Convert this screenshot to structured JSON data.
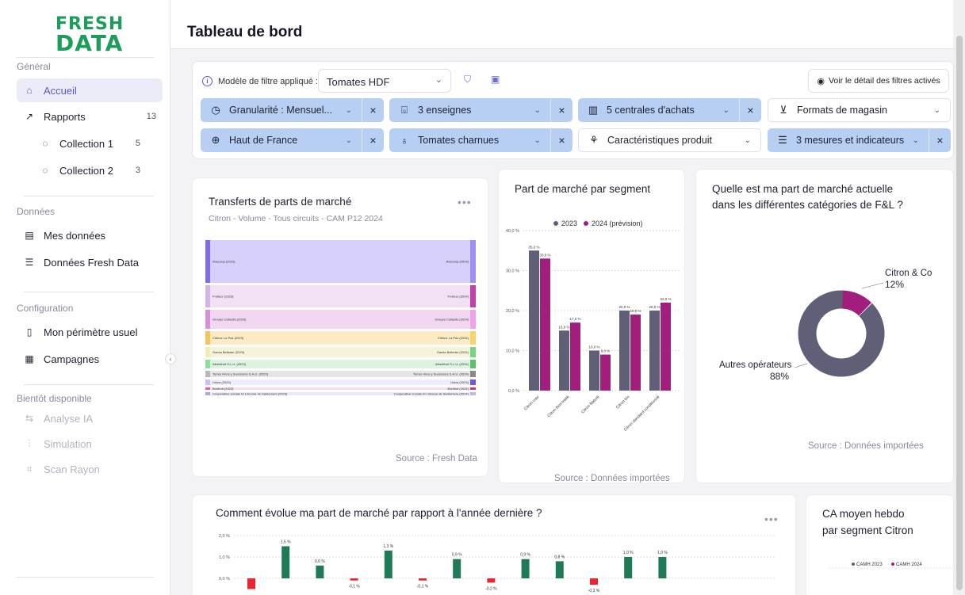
{
  "logo": {
    "line1": "FRESH",
    "line2": "DATA"
  },
  "sidebar": {
    "sections": [
      {
        "title": "Général"
      },
      {
        "title": "Données"
      },
      {
        "title": "Configuration"
      },
      {
        "title": "Bientôt disponible"
      }
    ],
    "items": {
      "accueil": "Accueil",
      "rapports": "Rapports",
      "rapports_count": "13",
      "collection1": "Collection 1",
      "collection1_count": "5",
      "collection2": "Collection 2",
      "collection2_count": "3",
      "mes_donnees": "Mes données",
      "donnees_fd": "Données Fresh Data",
      "perimetre": "Mon périmètre usuel",
      "campagnes": "Campagnes",
      "analyse": "Analyse IA",
      "simulation": "Simulation",
      "scan": "Scan Rayon"
    }
  },
  "header": {
    "title": "Tableau de bord"
  },
  "filters": {
    "label": "Modèle de filtre appliqué :",
    "model": "Tomates HDF",
    "detail": "Voir le détail des filtres activés",
    "chips": [
      {
        "label": "Granularité : Mensuel...",
        "icon": "clock-icon"
      },
      {
        "label": "3 enseignes",
        "icon": "basket-icon"
      },
      {
        "label": "5 centrales d'achats",
        "icon": "building-icon"
      },
      {
        "label": "Formats de magasin",
        "icon": "cart-icon"
      },
      {
        "label": "Haut de France",
        "icon": "globe-icon"
      },
      {
        "label": "Tomates charnues",
        "icon": "tomato-icon"
      },
      {
        "label": "Caractéristiques produit",
        "icon": "sprout-icon"
      },
      {
        "label": "3 mesures et indicateurs",
        "icon": "database-icon"
      }
    ]
  },
  "cards": {
    "transferts": {
      "title": "Transferts de parts de marché",
      "subtitle": "Citron - Volume - Tous circuits - CAM P12 2024",
      "source": "Source : Fresh Data",
      "left_nodes": [
        "Anecoop (2023)",
        "Fruiteur (2023)",
        "Groupe Cellacitu (2023)",
        "Citrinor La Paz (2023)",
        "Garcia Belleder (2023)",
        "Albertfruit S.L.U. (2023)",
        "Torres Hnos y Sucesores S.A.U. (2023)",
        "Unica (2023)",
        "Bonfruit (2023)",
        "Cooperative sociale El Limonar de Santomera (2023)"
      ],
      "right_nodes": [
        "Anecoop (2024)",
        "Fruiteur (2024)",
        "Groupe Cellacitu (2024)",
        "Citrinor La Paz (2024)",
        "Garcia Belleder (2024)",
        "Albertfruit S.L.U. (2024)",
        "Torres Hnos y Sucesores S.A.U. (2024)",
        "Unica (2024)",
        "Bonfruit (2024)",
        "Cooperative sociale El Limonar de Santomera (2024)"
      ]
    },
    "segment": {
      "title": "Part de marché par segment",
      "source": "Source :  Données importées"
    },
    "donut": {
      "title_line1": "Quelle est ma part de marché actuelle",
      "title_line2": "dans les différentes catégories de F&L ?",
      "source": "Source :  Données importées",
      "label1": "Citron & Co",
      "pct1": "12%",
      "label2": "Autres opérateurs",
      "pct2": "88%"
    },
    "evolution": {
      "title": "Comment évolue ma part de marché par rapport à l'année dernière ?"
    },
    "ca": {
      "title_line1": "CA moyen hebdo",
      "title_line2": "par segment Citron",
      "legend1": "CAMH 2023",
      "legend2": "CAMH 2024"
    }
  },
  "chart_data": [
    {
      "type": "bar",
      "title": "Part de marché par segment",
      "categories": [
        "Citron vrac",
        "Citron Non traité",
        "Citron Naturé",
        "Citron bio",
        "Citron standard conditionné"
      ],
      "series": [
        {
          "name": "2023",
          "values": [
            35.0,
            15.0,
            10.0,
            20.0,
            20.0
          ],
          "labels": [
            "35,0 %",
            "15,0 %",
            "10,0 %",
            "20,0 %",
            "20,0 %"
          ],
          "color": "#5f5f78"
        },
        {
          "name": "2024 (prévision)",
          "values": [
            33.0,
            17.0,
            9.0,
            19.0,
            22.0
          ],
          "labels": [
            "33,0 %",
            "17,0 %",
            "9,0 %",
            "19,0 %",
            "22,0 %"
          ],
          "color": "#a21e7c"
        }
      ],
      "ylim": [
        0,
        40
      ],
      "yticks": [
        "0,0 %",
        "10,0 %",
        "20,0 %",
        "30,0 %",
        "40,0 %"
      ],
      "legend": "top"
    },
    {
      "type": "pie",
      "values": [
        12,
        88
      ],
      "labels": [
        "Citron & Co",
        "Autres opérateurs"
      ],
      "colors": [
        "#a21e7c",
        "#5f5f78"
      ]
    },
    {
      "type": "bar",
      "title": "Comment évolue ma part de marché par rapport à l'année dernière ?",
      "values": [
        -0.5,
        1.5,
        0.6,
        -0.1,
        1.3,
        -0.1,
        0.9,
        -0.2,
        0.9,
        0.8,
        -0.3,
        1.0,
        1.0
      ],
      "labels": [
        "",
        "1,5 %",
        "0,6 %",
        "-0,1 %",
        "1,3 %",
        "-0,1 %",
        "0,9 %",
        "-0,2 %",
        "0,9 %",
        "0,8 %",
        "-0,3 %",
        "1,0 %",
        "1,0 %"
      ],
      "yticks": [
        "0,0 %",
        "1,0 %",
        "2,0 %"
      ],
      "ylim": [
        -0.6,
        2.0
      ],
      "colors": {
        "positive": "#1e7b55",
        "negative": "#e8262b"
      }
    }
  ],
  "sankey_flows": [
    {
      "from": 0,
      "to": 0,
      "color": "#cfc8fa"
    },
    {
      "from": 1,
      "to": 1,
      "color": "#f0dbf3"
    },
    {
      "from": 2,
      "to": 2,
      "color": "#efd0f0"
    },
    {
      "from": 3,
      "to": 3,
      "color": "#fbe7bb"
    },
    {
      "from": 4,
      "to": 4,
      "color": "#f3f2d2"
    },
    {
      "from": 5,
      "to": 5,
      "color": "#d5f1d9"
    },
    {
      "from": 6,
      "to": 6,
      "color": "#e0e0e0"
    },
    {
      "from": 7,
      "to": 7,
      "color": "#ece9fb"
    },
    {
      "from": 8,
      "to": 8,
      "color": "#f3d8e8"
    },
    {
      "from": 9,
      "to": 9,
      "color": "#e5e5f7"
    }
  ]
}
